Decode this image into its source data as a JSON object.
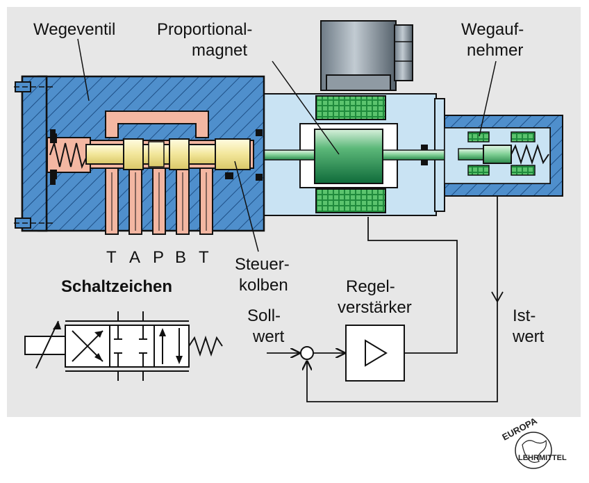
{
  "labels": {
    "wegeventil": "Wegeventil",
    "proportional_line1": "Proportional-",
    "proportional_line2": "magnet",
    "wegauf_line1": "Wegauf-",
    "wegauf_line2": "nehmer",
    "port_t1": "T",
    "port_a": "A",
    "port_p": "P",
    "port_b": "B",
    "port_t2": "T",
    "steuer_line1": "Steuer-",
    "steuer_line2": "kolben",
    "schaltzeichen": "Schaltzeichen",
    "regel_line1": "Regel-",
    "regel_line2": "verstärker",
    "soll_line1": "Soll-",
    "soll_line2": "wert",
    "ist_line1": "Ist-",
    "ist_line2": "wert"
  },
  "logo": {
    "top": "EUROPA",
    "bottom": "LEHRMITTEL"
  },
  "colors": {
    "panel": "#e7e7e7",
    "valve_body": "#4f8fcc",
    "housing": "#c9e3f3",
    "channel": "#f3b7a2",
    "spool": "#f4efb0",
    "coil": "#2f9f4a",
    "armature": "#2e8f55",
    "gasket": "#111111"
  }
}
